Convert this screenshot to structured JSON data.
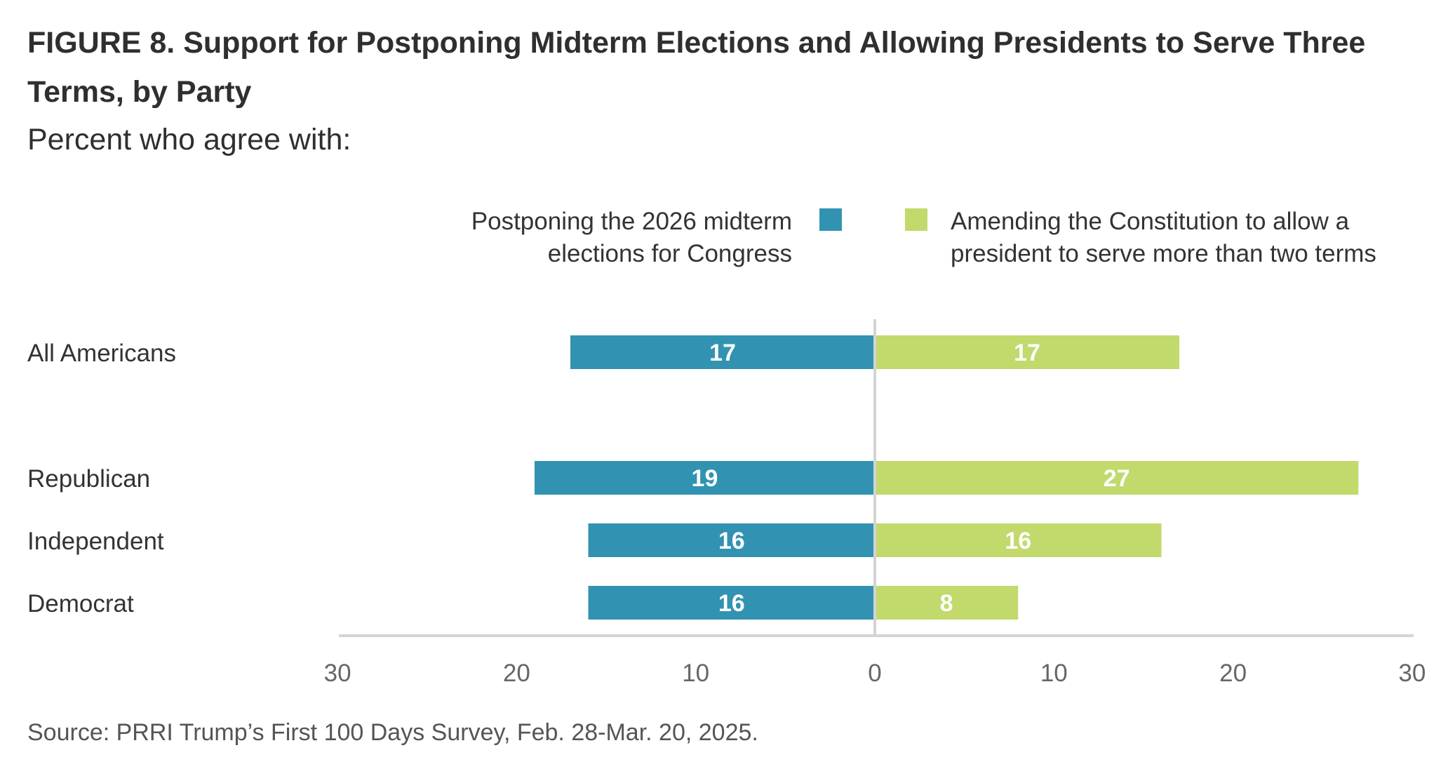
{
  "chart_data": {
    "type": "bar",
    "orientation": "diverging-horizontal",
    "title": "FIGURE 8.  Support for Postponing Midterm Elections and Allowing Presidents to Serve Three Terms, by Party",
    "subtitle": "Percent who agree with:",
    "categories": [
      "All Americans",
      "Republican",
      "Independent",
      "Democrat"
    ],
    "series": [
      {
        "name": "Postponing the 2026 midterm elections for Congress",
        "name_lines": [
          "Postponing the 2026 midterm",
          "elections for Congress"
        ],
        "side": "left",
        "color": "#3193b1",
        "values": [
          17,
          19,
          16,
          16
        ]
      },
      {
        "name": "Amending the Constitution to allow a president to serve more than two terms",
        "name_lines": [
          "Amending the Constitution to allow a",
          "president to serve more than two terms"
        ],
        "side": "right",
        "color": "#c2d96c",
        "values": [
          17,
          27,
          16,
          8
        ]
      }
    ],
    "xlim": [
      -30,
      30
    ],
    "xticks": [
      -30,
      -20,
      -10,
      0,
      10,
      20,
      30
    ],
    "xtick_labels": [
      "30",
      "20",
      "10",
      "0",
      "10",
      "20",
      "30"
    ],
    "xlabel": "",
    "ylabel": "",
    "grid": false,
    "legend": "top-center"
  },
  "source": "Source: PRRI Trump’s First 100 Days Survey, Feb. 28-Mar. 20, 2025."
}
